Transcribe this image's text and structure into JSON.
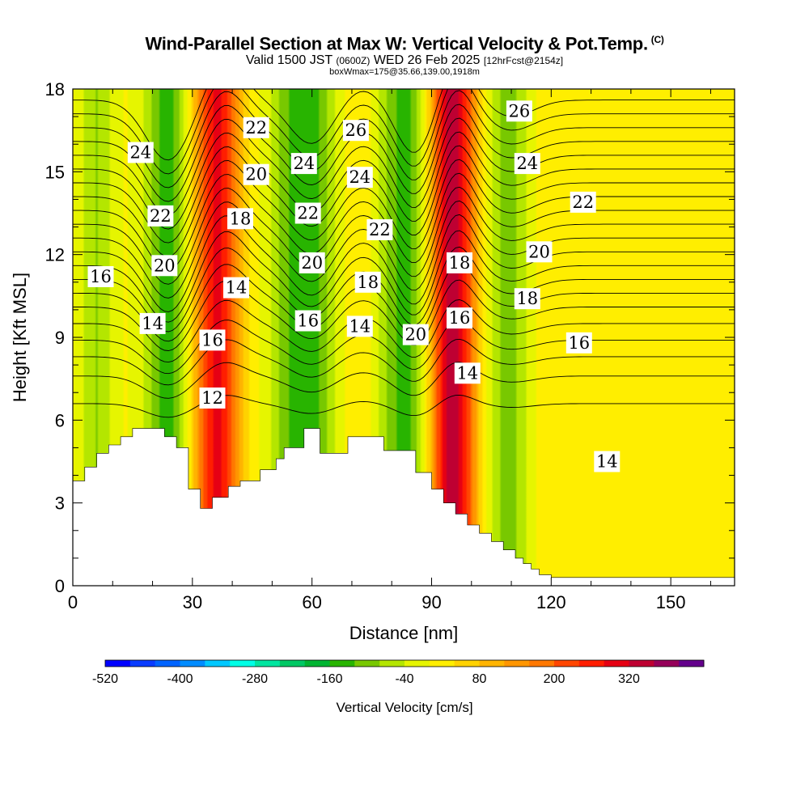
{
  "title": {
    "main": "Wind-Parallel Section at Max W: Vertical Velocity & Pot.Temp.",
    "copyright": "(C)",
    "valid_prefix": "Valid 1500 JST",
    "valid_utc": "(0600Z)",
    "valid_date": "WED 26 Feb 2025",
    "forecast": "[12hrFcst@2154z]",
    "boxinfo": "boxWmax=175@35.66,139.00,1918m"
  },
  "chart_data": {
    "type": "heatmap",
    "xlabel": "Distance [nm]",
    "ylabel": "Height [Kft MSL]",
    "xlim": [
      0,
      166
    ],
    "ylim": [
      0,
      18
    ],
    "x_ticks": [
      0,
      30,
      60,
      90,
      120,
      150
    ],
    "y_ticks": [
      0,
      3,
      6,
      9,
      12,
      15,
      18
    ],
    "colorbar": {
      "title": "Vertical Velocity [cm/s]",
      "levels": [
        -520,
        -480,
        -440,
        -400,
        -360,
        -320,
        -280,
        -240,
        -200,
        -160,
        -120,
        -80,
        -40,
        0,
        40,
        80,
        120,
        160,
        200,
        240,
        280,
        320,
        360,
        400
      ],
      "tick_labels": [
        "-520",
        "-400",
        "-280",
        "-160",
        "-40",
        "80",
        "200",
        "320"
      ],
      "colors": [
        "#0000ff",
        "#0a3cff",
        "#0064ff",
        "#008cff",
        "#00c8ff",
        "#00ffe6",
        "#00e6a0",
        "#00c864",
        "#00b432",
        "#28b400",
        "#78c800",
        "#b4e600",
        "#e6f500",
        "#ffee00",
        "#ffd200",
        "#ffb400",
        "#ff9600",
        "#ff7800",
        "#ff4600",
        "#ff1e00",
        "#e60014",
        "#be0032",
        "#96005a",
        "#64008c"
      ]
    },
    "vertical_velocity_bands": [
      {
        "x": 6,
        "w": -90,
        "width": 4
      },
      {
        "x": 24,
        "w": -150,
        "width": 6
      },
      {
        "x": 36,
        "w": 280,
        "width": 6
      },
      {
        "x": 58,
        "w": -160,
        "width": 8
      },
      {
        "x": 72,
        "w": 40,
        "width": 6
      },
      {
        "x": 84,
        "w": -150,
        "width": 8
      },
      {
        "x": 95,
        "w": 360,
        "width": 6
      },
      {
        "x": 109,
        "w": -110,
        "width": 6
      },
      {
        "x": 122,
        "w": 20,
        "width": 10
      }
    ],
    "terrain_profile": {
      "x": [
        0,
        3,
        6,
        9,
        12,
        15,
        18,
        21,
        23,
        26,
        29,
        29,
        32,
        35,
        35,
        39,
        42,
        47,
        51,
        53,
        58,
        62,
        62,
        68,
        69,
        74,
        78,
        86,
        90,
        93,
        96,
        99,
        102,
        105,
        108,
        111,
        113,
        115,
        117,
        120,
        123,
        125,
        127,
        129,
        132,
        135,
        138,
        141,
        166
      ],
      "height": [
        3.8,
        4.3,
        4.8,
        5.1,
        5.4,
        5.7,
        5.7,
        5.7,
        5.4,
        5.0,
        4.0,
        3.5,
        2.8,
        2.8,
        3.2,
        3.6,
        3.8,
        4.2,
        4.6,
        5.0,
        5.7,
        5.7,
        4.8,
        4.8,
        5.4,
        5.4,
        4.9,
        4.1,
        3.5,
        3.0,
        2.6,
        2.2,
        1.9,
        1.6,
        1.3,
        1.0,
        0.8,
        0.6,
        0.4,
        0.3,
        0.3,
        0.3,
        0.3,
        0.3,
        0.3,
        0.3,
        0.3,
        0.3,
        0.3
      ]
    },
    "potential_temperature_labels": [
      {
        "value": "24",
        "x": 17,
        "y": 15.7
      },
      {
        "value": "22",
        "x": 22,
        "y": 13.4
      },
      {
        "value": "20",
        "x": 23,
        "y": 11.6
      },
      {
        "value": "16",
        "x": 7,
        "y": 11.2
      },
      {
        "value": "14",
        "x": 20,
        "y": 9.5
      },
      {
        "value": "22",
        "x": 46,
        "y": 16.6
      },
      {
        "value": "20",
        "x": 46,
        "y": 14.9
      },
      {
        "value": "18",
        "x": 42,
        "y": 13.3
      },
      {
        "value": "14",
        "x": 41,
        "y": 10.8
      },
      {
        "value": "16",
        "x": 35,
        "y": 8.9
      },
      {
        "value": "12",
        "x": 35,
        "y": 6.8
      },
      {
        "value": "24",
        "x": 58,
        "y": 15.3
      },
      {
        "value": "22",
        "x": 59,
        "y": 13.5
      },
      {
        "value": "20",
        "x": 60,
        "y": 11.7
      },
      {
        "value": "16",
        "x": 59,
        "y": 9.6
      },
      {
        "value": "26",
        "x": 71,
        "y": 16.5
      },
      {
        "value": "24",
        "x": 72,
        "y": 14.8
      },
      {
        "value": "22",
        "x": 77,
        "y": 12.9
      },
      {
        "value": "18",
        "x": 74,
        "y": 11.0
      },
      {
        "value": "14",
        "x": 72,
        "y": 9.4
      },
      {
        "value": "20",
        "x": 86,
        "y": 9.1
      },
      {
        "value": "18",
        "x": 97,
        "y": 11.7
      },
      {
        "value": "16",
        "x": 97,
        "y": 9.7
      },
      {
        "value": "14",
        "x": 99,
        "y": 7.7
      },
      {
        "value": "26",
        "x": 112,
        "y": 17.2
      },
      {
        "value": "24",
        "x": 114,
        "y": 15.3
      },
      {
        "value": "22",
        "x": 128,
        "y": 13.9
      },
      {
        "value": "20",
        "x": 117,
        "y": 12.1
      },
      {
        "value": "18",
        "x": 114,
        "y": 10.4
      },
      {
        "value": "16",
        "x": 127,
        "y": 8.8
      },
      {
        "value": "14",
        "x": 134,
        "y": 4.5
      }
    ],
    "isentrope_levels": [
      6.6,
      7.6,
      8.3,
      8.9,
      9.5,
      10.1,
      10.6,
      11.1,
      11.6,
      12.1,
      12.6,
      13.1,
      13.6,
      14.1,
      14.6,
      15.1,
      15.6,
      16.1,
      16.6,
      17.1,
      17.6
    ]
  }
}
